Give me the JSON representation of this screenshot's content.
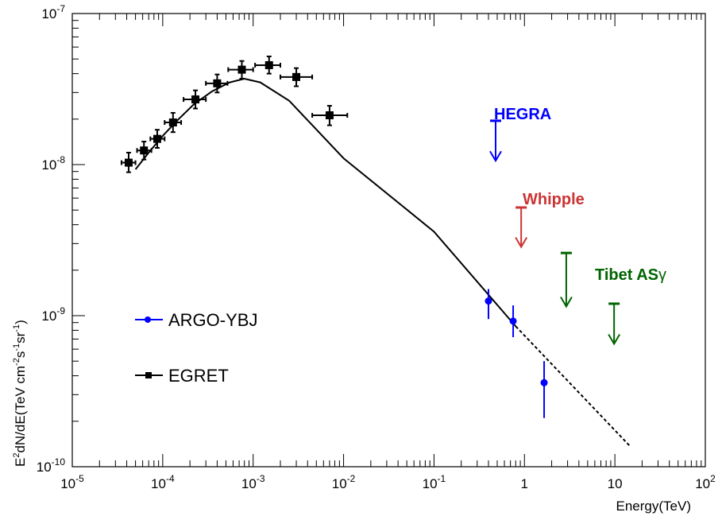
{
  "chart_data": {
    "type": "scatter",
    "title": "",
    "xlabel": "Energy(TeV)",
    "ylabel_parts": [
      "E",
      "2",
      "dN/dE(TeV cm",
      "-2",
      "s",
      "-1",
      "sr",
      "-1",
      ")"
    ],
    "xscale": "log",
    "yscale": "log",
    "xlim": [
      1e-05,
      100
    ],
    "ylim": [
      1e-10,
      1e-07
    ],
    "grid": false,
    "x_tick_labels": [
      {
        "v": 1e-05,
        "base": "10",
        "exp": "-5"
      },
      {
        "v": 0.0001,
        "base": "10",
        "exp": "-4"
      },
      {
        "v": 0.001,
        "base": "10",
        "exp": "-3"
      },
      {
        "v": 0.01,
        "base": "10",
        "exp": "-2"
      },
      {
        "v": 0.1,
        "base": "10",
        "exp": "-1"
      },
      {
        "v": 1,
        "base": "1",
        "exp": ""
      },
      {
        "v": 10,
        "base": "10",
        "exp": ""
      },
      {
        "v": 100,
        "base": "10",
        "exp": "2"
      }
    ],
    "y_tick_labels": [
      {
        "v": 1e-10,
        "base": "10",
        "exp": "-10"
      },
      {
        "v": 1e-09,
        "base": "10",
        "exp": "-9"
      },
      {
        "v": 1e-08,
        "base": "10",
        "exp": "-8"
      },
      {
        "v": 1e-07,
        "base": "10",
        "exp": "-7"
      }
    ],
    "legend": [
      {
        "label": "ARGO-YBJ",
        "color": "#0000ff",
        "marker": "circle"
      },
      {
        "label": "EGRET",
        "color": "#000000",
        "marker": "square"
      }
    ],
    "series": [
      {
        "name": "ARGO-YBJ",
        "color": "#0000ff",
        "points": [
          {
            "x": 0.4,
            "y": 1.25e-09,
            "ylo": 9.5e-10,
            "yhi": 1.5e-09
          },
          {
            "x": 0.75,
            "y": 9.2e-10,
            "ylo": 7.2e-10,
            "yhi": 1.17e-09
          },
          {
            "x": 1.65,
            "y": 3.6e-10,
            "ylo": 2.1e-10,
            "yhi": 5e-10
          }
        ]
      },
      {
        "name": "EGRET",
        "color": "#000000",
        "points": [
          {
            "x": 4.2e-05,
            "y": 1.03e-08,
            "xlo": 3.5e-05,
            "xhi": 5e-05,
            "ylo": 8.9e-09,
            "yhi": 1.2e-08
          },
          {
            "x": 6.2e-05,
            "y": 1.24e-08,
            "xlo": 5.2e-05,
            "xhi": 7.5e-05,
            "ylo": 1.08e-08,
            "yhi": 1.42e-08
          },
          {
            "x": 8.7e-05,
            "y": 1.48e-08,
            "xlo": 7.3e-05,
            "xhi": 0.000105,
            "ylo": 1.29e-08,
            "yhi": 1.7e-08
          },
          {
            "x": 0.00013,
            "y": 1.9e-08,
            "xlo": 0.000105,
            "xhi": 0.00016,
            "ylo": 1.64e-08,
            "yhi": 2.2e-08
          },
          {
            "x": 0.00023,
            "y": 2.7e-08,
            "xlo": 0.00017,
            "xhi": 0.0003,
            "ylo": 2.35e-08,
            "yhi": 3.1e-08
          },
          {
            "x": 0.0004,
            "y": 3.45e-08,
            "xlo": 0.0003,
            "xhi": 0.00052,
            "ylo": 3e-08,
            "yhi": 3.95e-08
          },
          {
            "x": 0.00075,
            "y": 4.25e-08,
            "xlo": 0.00053,
            "xhi": 0.001,
            "ylo": 3.7e-08,
            "yhi": 4.85e-08
          },
          {
            "x": 0.0015,
            "y": 4.55e-08,
            "xlo": 0.00105,
            "xhi": 0.002,
            "ylo": 4e-08,
            "yhi": 5.2e-08
          },
          {
            "x": 0.003,
            "y": 3.8e-08,
            "xlo": 0.002,
            "xhi": 0.0045,
            "ylo": 3.3e-08,
            "yhi": 4.35e-08
          },
          {
            "x": 0.007,
            "y": 2.12e-08,
            "xlo": 0.0045,
            "xhi": 0.011,
            "ylo": 1.82e-08,
            "yhi": 2.45e-08
          }
        ]
      }
    ],
    "model_curve": {
      "color": "#000000",
      "solid": [
        [
          5e-05,
          9.3e-09
        ],
        [
          7e-05,
          1.2e-08
        ],
        [
          0.0001,
          1.55e-08
        ],
        [
          0.00015,
          2e-08
        ],
        [
          0.00022,
          2.5e-08
        ],
        [
          0.00035,
          3.05e-08
        ],
        [
          0.00055,
          3.5e-08
        ],
        [
          0.0008,
          3.7e-08
        ],
        [
          0.0012,
          3.5e-08
        ],
        [
          0.0025,
          2.65e-08
        ],
        [
          0.01,
          1.1e-08
        ],
        [
          0.1,
          3.6e-09
        ],
        [
          0.8,
          8.5e-10
        ]
      ],
      "dashed": [
        [
          0.8,
          8.5e-10
        ],
        [
          15,
          1.35e-10
        ]
      ]
    },
    "upper_limits": [
      {
        "name": "HEGRA",
        "color": "#0000ff",
        "x": 0.48,
        "y": 1.95e-08,
        "y_tip": 1.06e-08
      },
      {
        "name": "Whipple",
        "color": "#cc3333",
        "x": 0.92,
        "y": 5.2e-09,
        "y_tip": 2.85e-09
      },
      {
        "name": "Tibet AS",
        "suffix": "γ",
        "color": "#006400",
        "x": 2.9,
        "y": 2.6e-09,
        "y_tip": 1.15e-09
      },
      {
        "name": "Tibet AS",
        "suffix": "γ",
        "color": "#006400",
        "x": 9.8,
        "y": 1.2e-09,
        "y_tip": 6.5e-10
      }
    ],
    "annotations": [
      {
        "text": "HEGRA",
        "color": "#0000ff"
      },
      {
        "text": "Whipple",
        "color": "#cc3333"
      },
      {
        "text": "Tibet AS",
        "suffix": "γ",
        "color": "#006400"
      }
    ]
  }
}
